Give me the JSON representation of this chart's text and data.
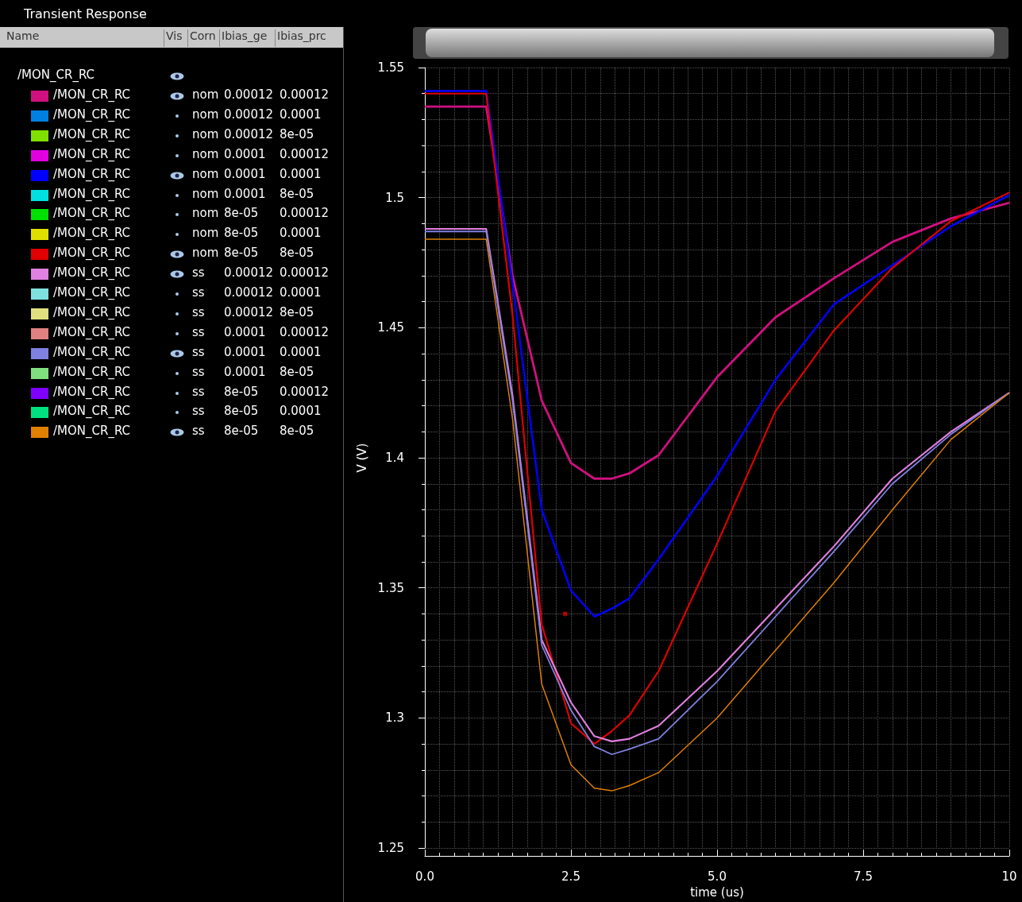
{
  "chart_data": {
    "type": "line",
    "title": "Transient Response",
    "xlabel": "time (us)",
    "ylabel": "V (V)",
    "x": [
      0,
      1.05,
      1.5,
      2,
      2.5,
      2.9,
      3.2,
      3.5,
      4,
      5,
      6,
      7,
      8,
      9,
      10
    ],
    "xlim": [
      0,
      10
    ],
    "xticks": [
      {
        "value": 0,
        "label": "0.0"
      },
      2.5,
      {
        "value": 5,
        "label": "5.0"
      },
      7.5,
      10
    ],
    "ylim": [
      1.25,
      1.55
    ],
    "yticks": [
      1.25,
      1.3,
      1.35,
      1.4,
      1.45,
      1.5,
      1.55
    ],
    "grid": true,
    "legend": "left",
    "marker": "none",
    "line_style": "solid",
    "annotations": [
      "Name",
      "Vis",
      "Corn",
      "Ibias_ge",
      "Ibias_prc",
      "/MON_CR_RC",
      "nom",
      "0.00012",
      "0.00012",
      "nom",
      "0.00012",
      "0.0001",
      "nom",
      "0.00012",
      "8e-05",
      "nom",
      "0.0001",
      "0.00012",
      "nom",
      "0.0001",
      "0.0001",
      "nom",
      "0.0001",
      "8e-05",
      "nom",
      "8e-05",
      "0.00012",
      "nom",
      "8e-05",
      "0.0001",
      "nom",
      "8e-05",
      "8e-05",
      "ss",
      "0.00012",
      "0.00012",
      "ss",
      "0.00012",
      "0.0001",
      "ss",
      "0.00012",
      "8e-05",
      "ss",
      "0.0001",
      "0.00012",
      "ss",
      "0.0001",
      "0.0001",
      "ss",
      "0.0001",
      "8e-05",
      "ss",
      "8e-05",
      "0.00012",
      "ss",
      "8e-05",
      "0.0001",
      "ss",
      "8e-05",
      "8e-05"
    ],
    "series": [
      {
        "name": "/MON_CR_RC",
        "color": "#d0107f",
        "values": [
          1.535,
          1.535,
          1.47,
          1.422,
          1.398,
          1.392,
          1.392,
          1.394,
          1.401,
          1.431,
          1.454,
          1.469,
          1.483,
          1.492,
          1.498
        ]
      },
      {
        "name": "/MON_CR_RC",
        "color": "#0080e0",
        "values": [
          null,
          null,
          null,
          null,
          null,
          null,
          null,
          null,
          null,
          null,
          null,
          null,
          null,
          null,
          null
        ]
      },
      {
        "name": "/MON_CR_RC",
        "color": "#80e000",
        "values": [
          null,
          null,
          null,
          null,
          null,
          null,
          null,
          null,
          null,
          null,
          null,
          null,
          null,
          null,
          null
        ]
      },
      {
        "name": "/MON_CR_RC",
        "color": "#e000e0",
        "values": [
          null,
          null,
          null,
          null,
          null,
          null,
          null,
          null,
          null,
          null,
          null,
          null,
          null,
          null,
          null
        ]
      },
      {
        "name": "/MON_CR_RC",
        "color": "#0000ff",
        "values": [
          1.541,
          1.541,
          1.467,
          1.38,
          1.349,
          1.339,
          1.342,
          1.346,
          1.361,
          1.393,
          1.43,
          1.459,
          1.474,
          1.489,
          1.501
        ]
      },
      {
        "name": "/MON_CR_RC",
        "color": "#00e0e0",
        "values": [
          null,
          null,
          null,
          null,
          null,
          null,
          null,
          null,
          null,
          null,
          null,
          null,
          null,
          null,
          null
        ]
      },
      {
        "name": "/MON_CR_RC",
        "color": "#00e000",
        "values": [
          null,
          null,
          null,
          null,
          null,
          null,
          null,
          null,
          null,
          null,
          null,
          null,
          null,
          null,
          null
        ]
      },
      {
        "name": "/MON_CR_RC",
        "color": "#e0e000",
        "values": [
          null,
          null,
          null,
          null,
          null,
          null,
          null,
          null,
          null,
          null,
          null,
          null,
          null,
          null,
          null
        ]
      },
      {
        "name": "/MON_CR_RC",
        "color": "#e00000",
        "values": [
          1.54,
          1.54,
          1.455,
          1.336,
          1.298,
          1.29,
          1.295,
          1.301,
          1.318,
          1.367,
          1.418,
          1.449,
          1.473,
          1.491,
          1.502
        ]
      },
      {
        "name": "/MON_CR_RC",
        "color": "#e080e0",
        "values": [
          1.488,
          1.488,
          1.424,
          1.33,
          1.306,
          1.293,
          1.291,
          1.292,
          1.297,
          1.318,
          1.342,
          1.366,
          1.392,
          1.41,
          1.425
        ]
      },
      {
        "name": "/MON_CR_RC",
        "color": "#80e0e0",
        "values": [
          null,
          null,
          null,
          null,
          null,
          null,
          null,
          null,
          null,
          null,
          null,
          null,
          null,
          null,
          null
        ]
      },
      {
        "name": "/MON_CR_RC",
        "color": "#e0e080",
        "values": [
          null,
          null,
          null,
          null,
          null,
          null,
          null,
          null,
          null,
          null,
          null,
          null,
          null,
          null,
          null
        ]
      },
      {
        "name": "/MON_CR_RC",
        "color": "#e08080",
        "values": [
          null,
          null,
          null,
          null,
          null,
          null,
          null,
          null,
          null,
          null,
          null,
          null,
          null,
          null,
          null
        ]
      },
      {
        "name": "/MON_CR_RC",
        "color": "#8080e0",
        "values": [
          1.487,
          1.487,
          1.422,
          1.328,
          1.303,
          1.289,
          1.286,
          1.288,
          1.292,
          1.314,
          1.339,
          1.364,
          1.39,
          1.409,
          1.425
        ]
      },
      {
        "name": "/MON_CR_RC",
        "color": "#80e080",
        "values": [
          null,
          null,
          null,
          null,
          null,
          null,
          null,
          null,
          null,
          null,
          null,
          null,
          null,
          null,
          null
        ]
      },
      {
        "name": "/MON_CR_RC",
        "color": "#8000ff",
        "values": [
          null,
          null,
          null,
          null,
          null,
          null,
          null,
          null,
          null,
          null,
          null,
          null,
          null,
          null,
          null
        ]
      },
      {
        "name": "/MON_CR_RC",
        "color": "#00e080",
        "values": [
          null,
          null,
          null,
          null,
          null,
          null,
          null,
          null,
          null,
          null,
          null,
          null,
          null,
          null,
          null
        ]
      },
      {
        "name": "/MON_CR_RC",
        "color": "#e08000",
        "values": [
          1.484,
          1.484,
          1.415,
          1.313,
          1.282,
          1.273,
          1.272,
          1.274,
          1.279,
          1.3,
          1.326,
          1.352,
          1.38,
          1.407,
          1.425
        ]
      },
      {
        "type": "scatter",
        "color": "#e00000",
        "x": [
          2.4
        ],
        "values": [
          1.34
        ]
      }
    ]
  }
}
